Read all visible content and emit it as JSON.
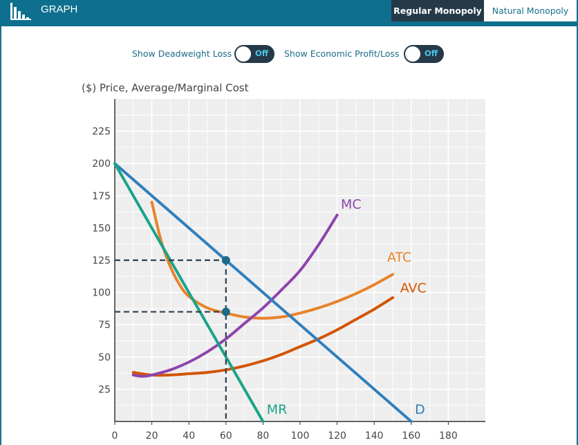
{
  "header": {
    "title": "GRAPH",
    "tabs": [
      {
        "label": "Regular Monopoly",
        "active": true
      },
      {
        "label": "Natural Monopoly",
        "active": false
      }
    ],
    "colors": {
      "bar": "#0e6f8e",
      "active_tab": "#253a49"
    }
  },
  "toggles": [
    {
      "label": "Show Deadweight Loss",
      "state": "Off"
    },
    {
      "label": "Show Economic Profit/Loss",
      "state": "Off"
    }
  ],
  "chart_data": {
    "type": "line",
    "ylabel": "($) Price, Average/Marginal Cost",
    "xlim": [
      0,
      200
    ],
    "ylim": [
      0,
      250
    ],
    "xticks": [
      0,
      20,
      40,
      60,
      80,
      100,
      120,
      140,
      160,
      180
    ],
    "yticks": [
      25,
      50,
      75,
      100,
      125,
      150,
      175,
      200,
      225
    ],
    "grid": true,
    "series": [
      {
        "name": "D",
        "color": "#2f7fbd",
        "x": [
          0,
          160
        ],
        "y": [
          200,
          0
        ]
      },
      {
        "name": "MR",
        "color": "#1aa38a",
        "x": [
          0,
          80
        ],
        "y": [
          200,
          0
        ]
      },
      {
        "name": "MC",
        "color": "#8e44ad",
        "x": [
          10,
          15,
          20,
          30,
          40,
          50,
          60,
          70,
          80,
          90,
          100,
          110,
          120
        ],
        "y": [
          36,
          35,
          36,
          40,
          46,
          54,
          64,
          76,
          88,
          102,
          117,
          137,
          160
        ]
      },
      {
        "name": "ATC",
        "color": "#e8832a",
        "x": [
          20,
          25,
          30,
          35,
          40,
          50,
          60,
          70,
          80,
          90,
          100,
          110,
          120,
          130,
          140,
          150
        ],
        "y": [
          170,
          140,
          120,
          106,
          97,
          88,
          84,
          81,
          80,
          81,
          84,
          88,
          93,
          99,
          106,
          114
        ]
      },
      {
        "name": "AVC",
        "color": "#d35400",
        "x": [
          10,
          20,
          30,
          40,
          50,
          60,
          70,
          80,
          90,
          100,
          110,
          120,
          130,
          140,
          150
        ],
        "y": [
          38,
          36,
          36,
          37,
          38,
          40,
          43,
          47,
          52,
          58,
          64,
          71,
          79,
          87,
          96
        ]
      }
    ],
    "points": [
      {
        "x": 60,
        "y": 125,
        "color": "#1a6b88"
      },
      {
        "x": 60,
        "y": 85,
        "color": "#1a6b88"
      }
    ],
    "guides": [
      {
        "from": [
          0,
          125
        ],
        "to": [
          60,
          125
        ]
      },
      {
        "from": [
          0,
          85
        ],
        "to": [
          60,
          85
        ]
      },
      {
        "from": [
          60,
          125
        ],
        "to": [
          60,
          0
        ]
      }
    ],
    "labels": [
      {
        "text": "MC",
        "x": 122,
        "y": 165,
        "color": "#8e44ad"
      },
      {
        "text": "ATC",
        "x": 147,
        "y": 124,
        "color": "#e8832a"
      },
      {
        "text": "AVC",
        "x": 154,
        "y": 100,
        "color": "#d35400"
      },
      {
        "text": "MR",
        "x": 82,
        "y": 6,
        "color": "#1aa38a"
      },
      {
        "text": "D",
        "x": 162,
        "y": 6,
        "color": "#2f7fbd"
      }
    ]
  }
}
